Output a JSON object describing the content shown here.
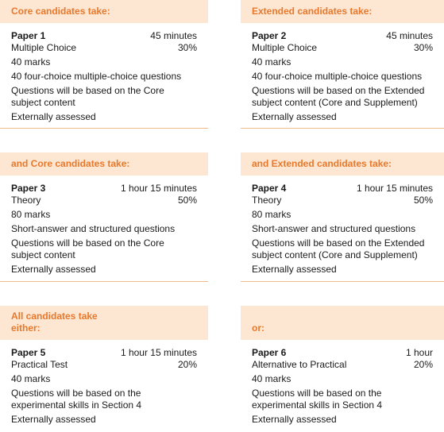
{
  "cards": [
    {
      "header": "Core candidates take:",
      "paper": "Paper 1",
      "time": "45 minutes",
      "component": "Multiple Choice",
      "weight": "30%",
      "lines": [
        "40 marks",
        "40 four-choice multiple-choice questions",
        "Questions will be based on the Core subject content",
        "Externally assessed"
      ]
    },
    {
      "header": "Extended candidates take:",
      "paper": "Paper 2",
      "time": "45 minutes",
      "component": "Multiple Choice",
      "weight": "30%",
      "lines": [
        "40 marks",
        "40 four-choice multiple-choice questions",
        "Questions will be based on the Extended subject content (Core and Supplement)",
        "Externally assessed"
      ]
    },
    {
      "header": "and Core candidates take:",
      "paper": "Paper 3",
      "time": "1 hour 15 minutes",
      "component": "Theory",
      "weight": "50%",
      "lines": [
        "80 marks",
        "Short-answer and structured questions",
        "Questions will be based on the Core subject content",
        "Externally assessed"
      ]
    },
    {
      "header": "and Extended candidates take:",
      "paper": "Paper 4",
      "time": "1 hour 15 minutes",
      "component": "Theory",
      "weight": "50%",
      "lines": [
        "80 marks",
        "Short-answer and structured questions",
        "Questions will be based on the Extended subject content (Core and Supplement)",
        "Externally assessed"
      ]
    },
    {
      "header": "All candidates take either:",
      "paper": "Paper 5",
      "time": "1 hour 15 minutes",
      "component": "Practical Test",
      "weight": "20%",
      "lines": [
        "40 marks",
        "Questions will be based on the experimental skills in Section 4",
        "Externally assessed"
      ]
    },
    {
      "header": "or:",
      "paper": "Paper 6",
      "time": "1 hour",
      "component": "Alternative to Practical",
      "weight": "20%",
      "lines": [
        "40 marks",
        "Questions will be based on the experimental skills in Section 4",
        "Externally assessed"
      ]
    }
  ]
}
